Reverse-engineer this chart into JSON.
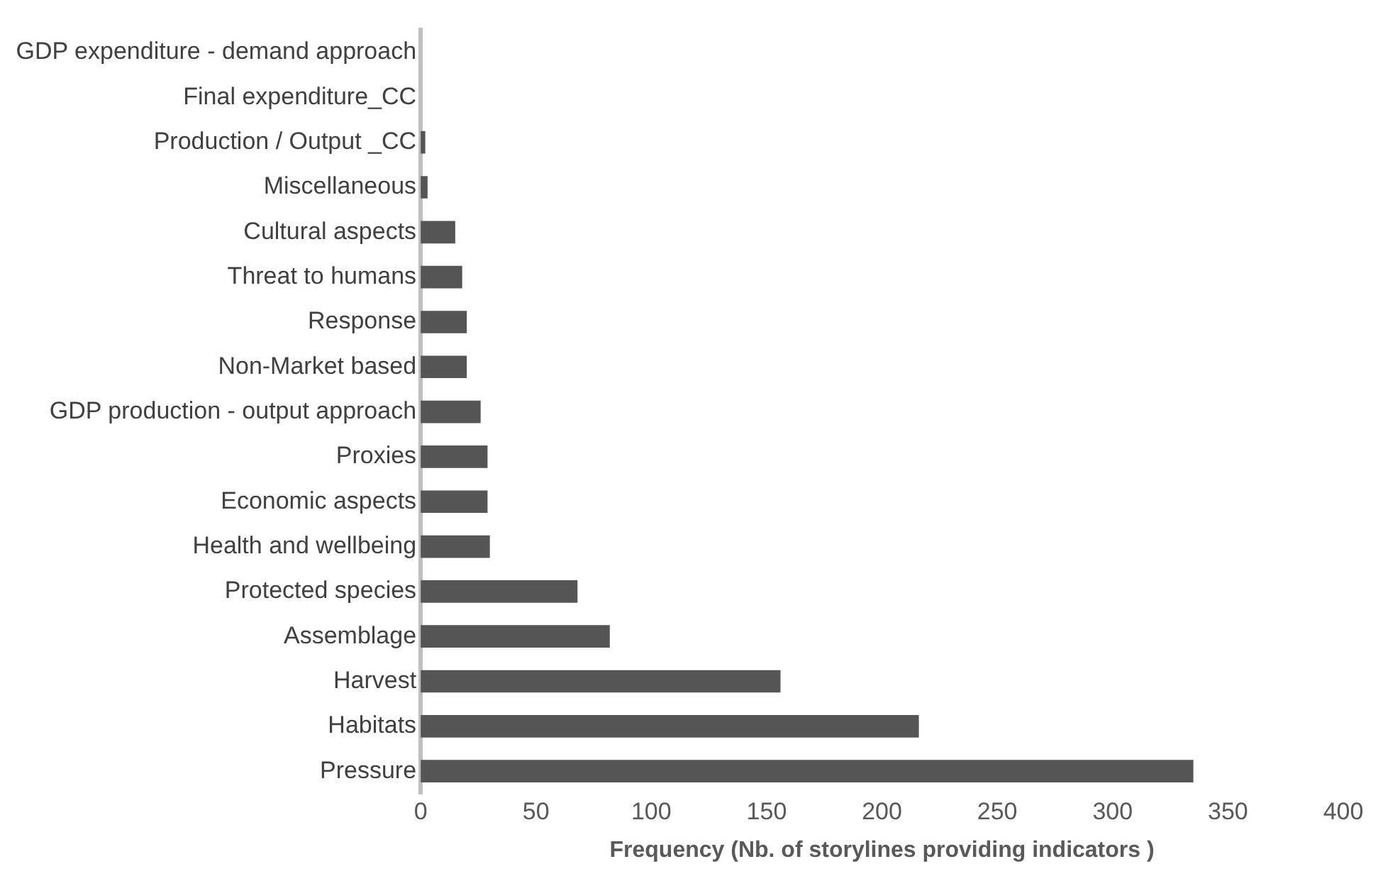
{
  "chart_data": {
    "type": "bar",
    "orientation": "horizontal",
    "xlabel": "Frequency (Nb. of storylines providing indicators )",
    "categories": [
      "GDP expenditure - demand approach",
      "Final expenditure_CC",
      "Production / Output _CC",
      "Miscellaneous",
      "Cultural aspects",
      "Threat to humans",
      "Response",
      "Non-Market based",
      "GDP production - output approach",
      "Proxies",
      "Economic aspects",
      "Health and wellbeing",
      "Protected species",
      "Assemblage",
      "Harvest",
      "Habitats",
      "Pressure"
    ],
    "values": [
      0,
      0,
      2,
      3,
      15,
      18,
      20,
      20,
      26,
      29,
      29,
      30,
      68,
      82,
      156,
      216,
      335
    ],
    "color": "#555555",
    "xlim": [
      0,
      400
    ],
    "xticks": [
      0,
      50,
      100,
      150,
      200,
      250,
      300,
      350,
      400
    ],
    "grid": false,
    "legend": false
  }
}
